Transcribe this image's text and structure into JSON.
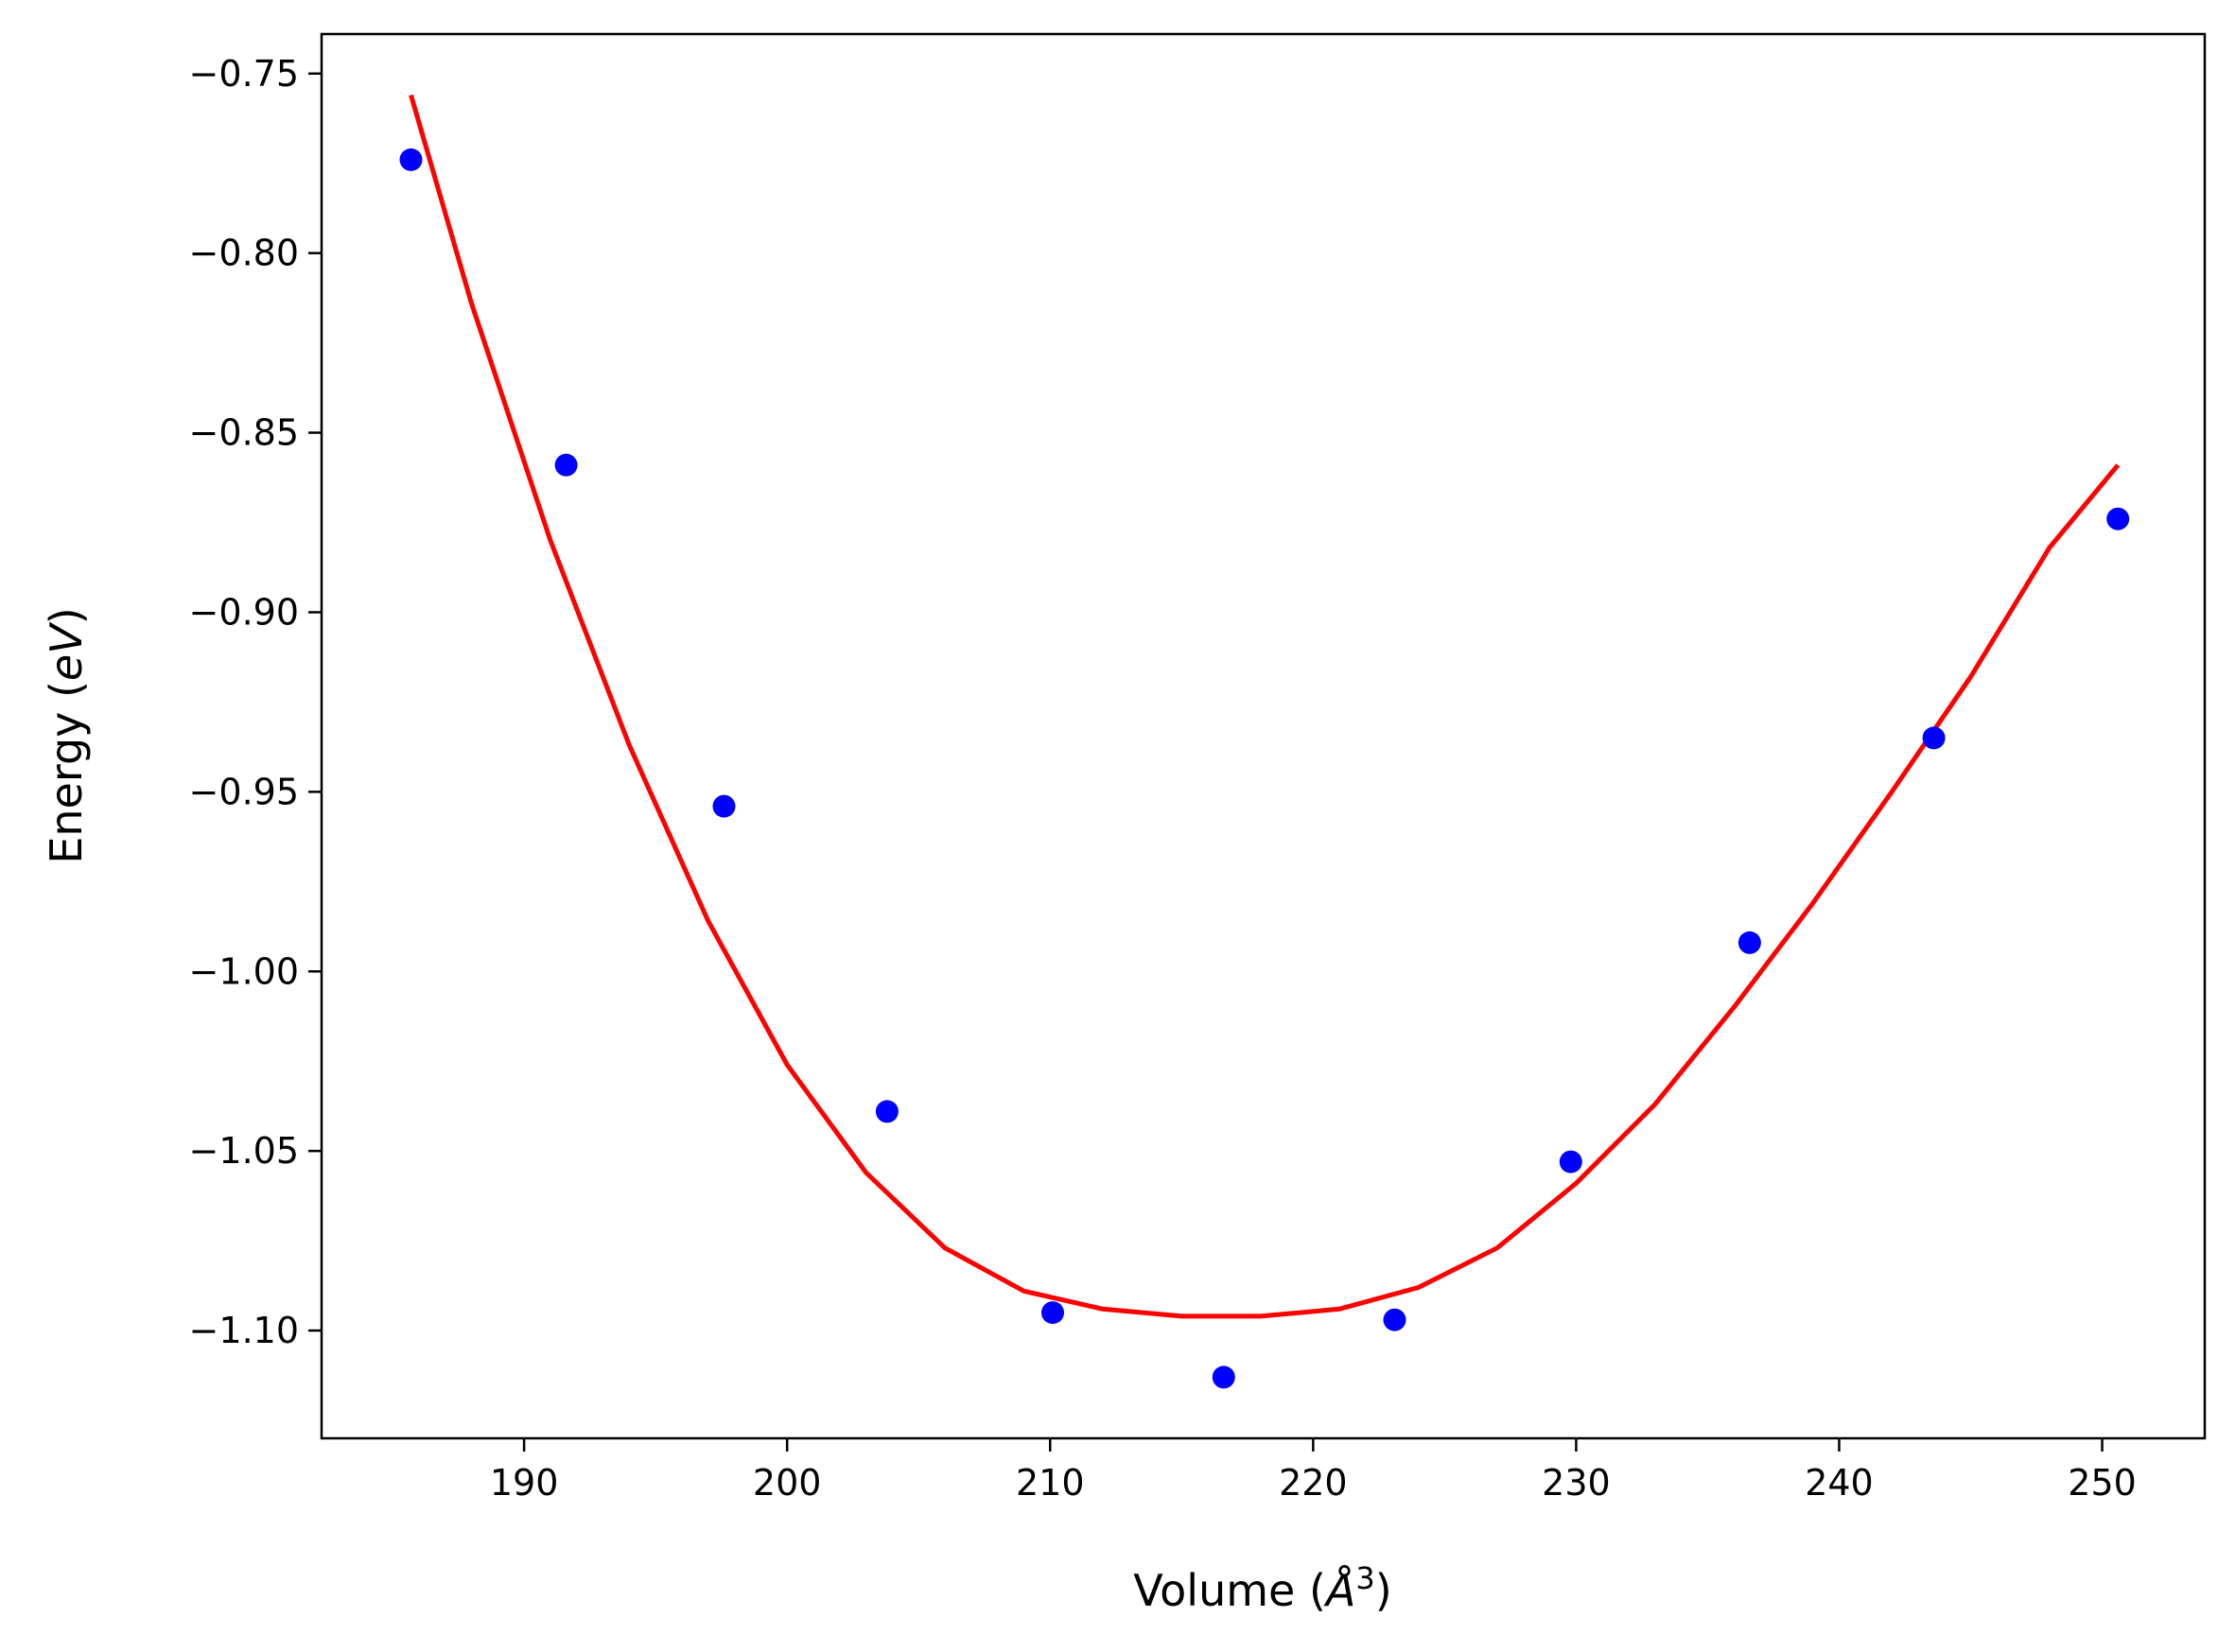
{
  "chart_data": {
    "type": "scatter",
    "title": "",
    "xlabel": "Volume",
    "xlabel_unit": "Å",
    "xlabel_unit_exponent": "3",
    "ylabel": "Energy",
    "ylabel_unit": "eV",
    "xlim": [
      182.3,
      253.9
    ],
    "ylim": [
      -1.13,
      -0.739
    ],
    "x_ticks": [
      190,
      200,
      210,
      220,
      230,
      240,
      250
    ],
    "x_tick_labels": [
      "190",
      "200",
      "210",
      "220",
      "230",
      "240",
      "250"
    ],
    "y_ticks": [
      -0.75,
      -0.8,
      -0.85,
      -0.9,
      -0.95,
      -1.0,
      -1.05,
      -1.1
    ],
    "y_tick_labels": [
      "−0.75",
      "−0.80",
      "−0.85",
      "−0.90",
      "−0.95",
      "−1.00",
      "−1.05",
      "−1.10"
    ],
    "grid": false,
    "legend": "none",
    "series": [
      {
        "kind": "points",
        "color": "#0000ff",
        "x": [
          185.7,
          191.6,
          197.6,
          203.8,
          210.1,
          216.6,
          223.1,
          229.8,
          236.6,
          243.6,
          250.6
        ],
        "y": [
          -0.774,
          -0.859,
          -0.954,
          -1.039,
          -1.095,
          -1.113,
          -1.097,
          -1.053,
          -0.992,
          -0.935,
          -0.874
        ]
      },
      {
        "kind": "fit-curve",
        "color": "#ff0000",
        "x": [
          185.7,
          188.0,
          191.0,
          194.0,
          197.0,
          200.0,
          203.0,
          206.0,
          209.0,
          212.0,
          215.0,
          218.0,
          221.0,
          224.0,
          227.0,
          230.0,
          233.0,
          236.0,
          239.0,
          242.0,
          245.0,
          248.0,
          250.6
        ],
        "y": [
          -0.756,
          -0.814,
          -0.88,
          -0.937,
          -0.986,
          -1.026,
          -1.056,
          -1.077,
          -1.089,
          -1.094,
          -1.096,
          -1.096,
          -1.094,
          -1.088,
          -1.077,
          -1.059,
          -1.037,
          -1.01,
          -0.981,
          -0.95,
          -0.918,
          -0.882,
          -0.859
        ]
      }
    ]
  }
}
